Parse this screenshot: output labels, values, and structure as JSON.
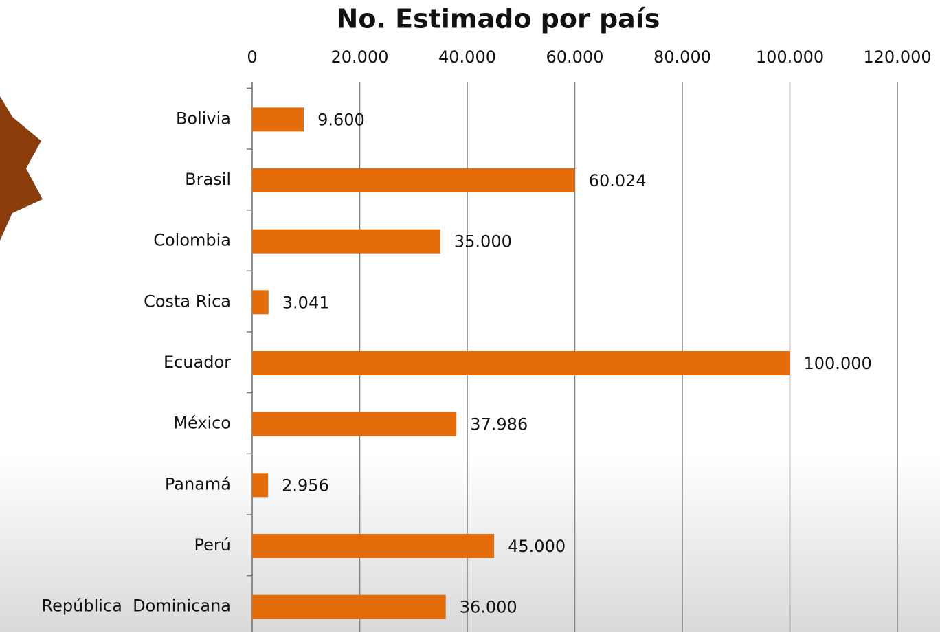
{
  "chart_data": {
    "type": "bar",
    "orientation": "horizontal",
    "title": "No. Estimado por país",
    "categories": [
      "Bolivia",
      "Brasil",
      "Colombia",
      "Costa Rica",
      "Ecuador",
      "México",
      "Panamá",
      "Perú",
      "República  Dominicana"
    ],
    "values": [
      9600,
      60024,
      35000,
      3041,
      100000,
      37986,
      2956,
      45000,
      36000
    ],
    "value_labels": [
      "9.600",
      "60.024",
      "35.000",
      "3.041",
      "100.000",
      "37.986",
      "2.956",
      "45.000",
      "36.000"
    ],
    "color": "#e46c0a",
    "xlim": [
      0,
      120000
    ],
    "xticks": [
      0,
      {
        "value": 20000,
        "label": "20.000"
      },
      {
        "value": 40000,
        "label": "40.000"
      },
      {
        "value": 60000,
        "label": "60.000"
      },
      {
        "value": 80000,
        "label": "80.000"
      },
      {
        "value": 100000,
        "label": "100.000"
      },
      {
        "value": 120000,
        "label": "120.000"
      }
    ],
    "grid": true
  }
}
